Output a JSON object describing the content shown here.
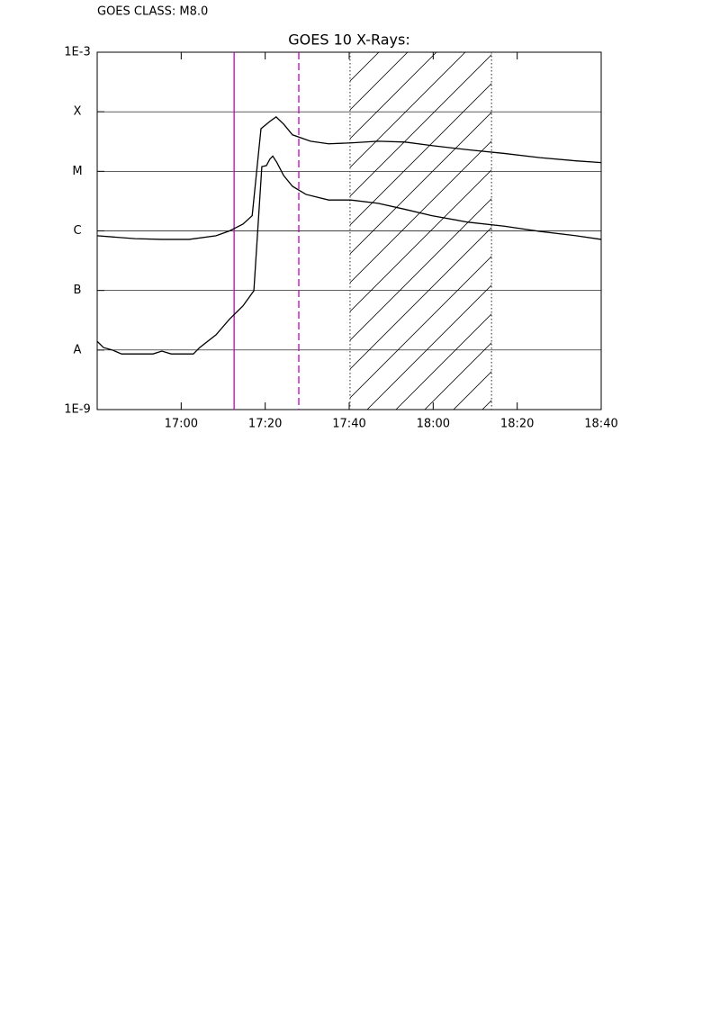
{
  "chart_data": {
    "type": "line",
    "header": "GOES CLASS: M8.0",
    "title": "GOES 10 X-Rays:",
    "log_y": true,
    "grid": true,
    "xlim": [
      1000,
      1120
    ],
    "xticks": [
      {
        "value": 1020,
        "label": "17:00"
      },
      {
        "value": 1040,
        "label": "17:20"
      },
      {
        "value": 1060,
        "label": "17:40"
      },
      {
        "value": 1080,
        "label": "18:00"
      },
      {
        "value": 1100,
        "label": "18:20"
      },
      {
        "value": 1120,
        "label": "18:40"
      }
    ],
    "ylim": [
      1e-09,
      0.001
    ],
    "yticks": [
      {
        "value": 0.001,
        "label": "1E-3"
      },
      {
        "value": 0.0001,
        "label": "X"
      },
      {
        "value": 1e-05,
        "label": "M"
      },
      {
        "value": 1e-06,
        "label": "C"
      },
      {
        "value": 1e-07,
        "label": "B"
      },
      {
        "value": 1e-08,
        "label": "A"
      },
      {
        "value": 1e-09,
        "label": "1E-9"
      }
    ],
    "series": [
      {
        "color": "#000000",
        "x": [
          1000,
          1009,
          1015.4,
          1021.9,
          1028.3,
          1031.5,
          1034.7,
          1036.9,
          1039.0,
          1041.1,
          1042.6,
          1044.4,
          1046.5,
          1050.8,
          1055.1,
          1060.4,
          1066.9,
          1073.3,
          1079.7,
          1088.3,
          1096.9,
          1105.4,
          1114.0,
          1120
        ],
        "values": [
          8.3e-07,
          7.4e-07,
          7.2e-07,
          7.2e-07,
          8.3e-07,
          1e-06,
          1.3e-06,
          1.8e-06,
          5.2e-05,
          6.9e-05,
          8.2e-05,
          6.2e-05,
          4.1e-05,
          3.2e-05,
          2.9e-05,
          3e-05,
          3.2e-05,
          3.1e-05,
          2.7e-05,
          2.3e-05,
          2e-05,
          1.7e-05,
          1.5e-05,
          1.4e-05
        ]
      },
      {
        "color": "#000000",
        "x": [
          1000,
          1001.5,
          1003.6,
          1005.8,
          1013.3,
          1015.4,
          1017.6,
          1022.9,
          1024.4,
          1028.3,
          1031.5,
          1034.7,
          1037.3,
          1039.2,
          1040.3,
          1041.1,
          1041.8,
          1042.8,
          1044.4,
          1046.5,
          1049.7,
          1055.1,
          1060.4,
          1066.9,
          1073.3,
          1079.7,
          1088.3,
          1096.9,
          1105.4,
          1114.0,
          1120
        ],
        "values": [
          1.4e-08,
          1.1e-08,
          1e-08,
          8.6e-09,
          8.6e-09,
          9.6e-09,
          8.6e-09,
          8.6e-09,
          1.1e-08,
          1.8e-08,
          3.3e-08,
          5.5e-08,
          9.9e-08,
          1.2e-05,
          1.25e-05,
          1.6e-05,
          1.8e-05,
          1.4e-05,
          8.5e-06,
          5.6e-06,
          4.1e-06,
          3.3e-06,
          3.3e-06,
          2.9e-06,
          2.3e-06,
          1.8e-06,
          1.4e-06,
          1.2e-06,
          9.8e-07,
          8.3e-07,
          7.2e-07
        ]
      }
    ],
    "vlines": [
      {
        "x": 1032.6,
        "color": "#c000c0",
        "style": "solid"
      },
      {
        "x": 1048.0,
        "color": "#c000c0",
        "style": "dashed"
      },
      {
        "x": 1060.2,
        "color": "#555555",
        "style": "dotted"
      },
      {
        "x": 1093.9,
        "color": "#555555",
        "style": "dotted"
      }
    ],
    "shaded": [
      1060.2,
      1093.9
    ]
  }
}
